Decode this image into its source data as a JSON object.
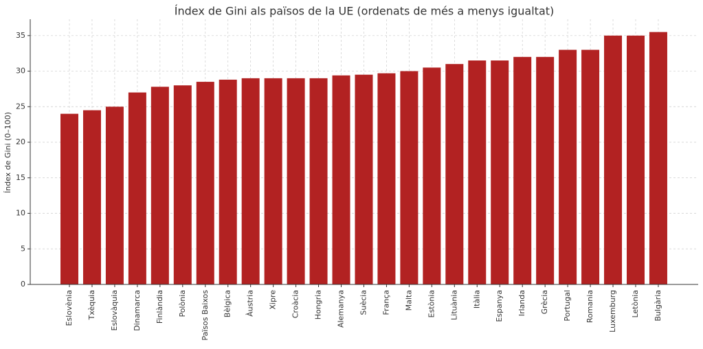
{
  "chart_data": {
    "type": "bar",
    "title": "Índex de Gini als països de la UE (ordenats de més a menys igualtat)",
    "y_label": "Índex de Gini (0–100)",
    "categories": [
      "Eslovènia",
      "Txèquia",
      "Eslovàquia",
      "Dinamarca",
      "Finlàndia",
      "Polònia",
      "Països Baixos",
      "Bèlgica",
      "Àustria",
      "Xipre",
      "Croàcia",
      "Hongria",
      "Alemanya",
      "Suècia",
      "França",
      "Malta",
      "Estònia",
      "Lituània",
      "Itàlia",
      "Espanya",
      "Irlanda",
      "Grècia",
      "Portugal",
      "Romania",
      "Luxemburg",
      "Letònia",
      "Bulgària"
    ],
    "values": [
      24,
      24.5,
      25,
      27,
      27.8,
      28,
      28.5,
      28.8,
      29,
      29,
      29,
      29,
      29.4,
      29.5,
      29.7,
      30,
      30.5,
      31,
      31.5,
      31.5,
      32,
      32,
      33,
      33,
      35,
      35,
      35.5
    ],
    "color": "#b22222",
    "ylim": [
      0,
      37.3
    ],
    "yticks": [
      0,
      5,
      10,
      15,
      20,
      25,
      30,
      35
    ],
    "grid": true
  }
}
